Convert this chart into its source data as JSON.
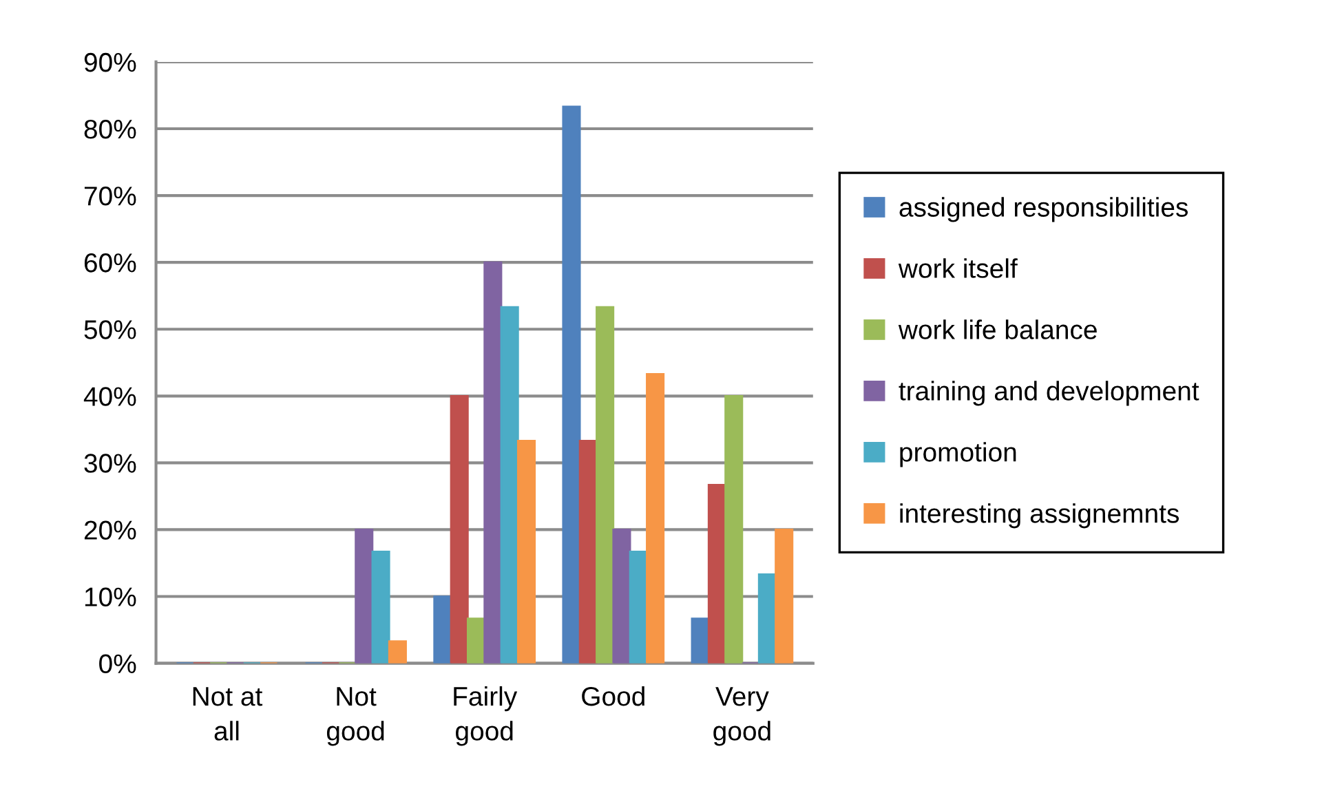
{
  "chart_data": {
    "type": "bar",
    "categories": [
      "Not at\nall",
      "Not\ngood",
      "Fairly\ngood",
      "Good",
      "Very\ngood"
    ],
    "series": [
      {
        "name": "assigned responsibilities",
        "color": "#4f81bd",
        "values": [
          0,
          0,
          10,
          83.3,
          6.7
        ]
      },
      {
        "name": "work itself",
        "color": "#c0504d",
        "values": [
          0,
          0,
          40,
          33.3,
          26.7
        ]
      },
      {
        "name": "work life balance",
        "color": "#9bbb59",
        "values": [
          0,
          0,
          6.7,
          53.3,
          40
        ]
      },
      {
        "name": "training and development",
        "color": "#8064a2",
        "values": [
          0,
          20,
          60,
          20,
          0
        ]
      },
      {
        "name": "promotion",
        "color": "#4bacc6",
        "values": [
          0,
          16.7,
          53.3,
          16.7,
          13.3
        ]
      },
      {
        "name": "interesting assignemnts",
        "color": "#f79646",
        "values": [
          0,
          3.3,
          33.3,
          43.3,
          20
        ]
      }
    ],
    "ylim": [
      0,
      90
    ],
    "yticks": [
      {
        "value": 0,
        "label": "0%"
      },
      {
        "value": 10,
        "label": "10%"
      },
      {
        "value": 20,
        "label": "20%"
      },
      {
        "value": 30,
        "label": "30%"
      },
      {
        "value": 40,
        "label": "40%"
      },
      {
        "value": 50,
        "label": "50%"
      },
      {
        "value": 60,
        "label": "60%"
      },
      {
        "value": 70,
        "label": "70%"
      },
      {
        "value": 80,
        "label": "80%"
      },
      {
        "value": 90,
        "label": "90%"
      }
    ],
    "grid": "y",
    "legend": "right"
  }
}
